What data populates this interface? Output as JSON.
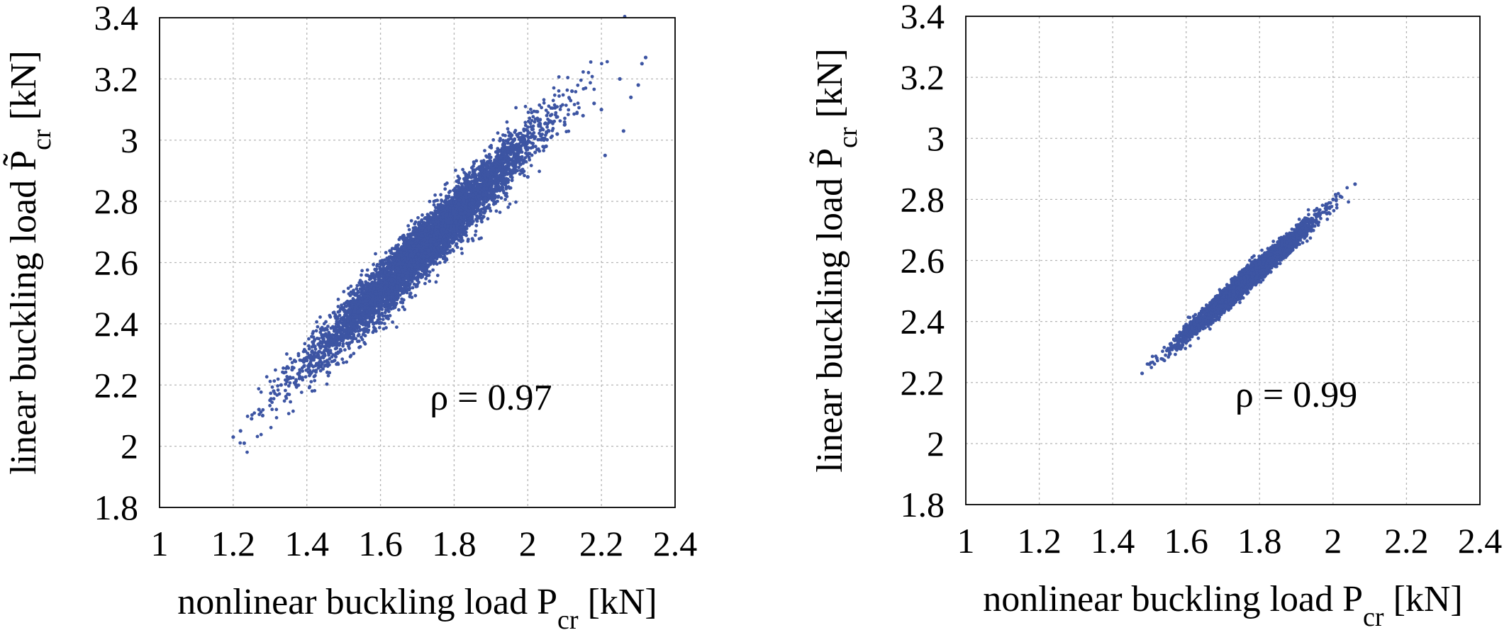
{
  "chart_data": [
    {
      "type": "scatter",
      "xlabel": "nonlinear buckling load P_cr [kN]",
      "ylabel": "linear buckling load P̃_cr [kN]",
      "xlim": [
        1,
        2.4
      ],
      "ylim": [
        1.8,
        3.4
      ],
      "xticks": [
        "1",
        "1.2",
        "1.4",
        "1.6",
        "1.8",
        "2",
        "2.2",
        "2.4"
      ],
      "yticks": [
        "1.8",
        "2",
        "2.2",
        "2.4",
        "2.6",
        "2.8",
        "3",
        "3.2",
        "3.4"
      ],
      "grid": true,
      "annotation": {
        "text": "ρ = 0.97",
        "x": 1.9,
        "y": 2.12
      },
      "marker_color": "#3d55a3",
      "series": [
        {
          "points": [
            [
              1.2,
              2.03
            ],
            [
              1.22,
              2.05
            ],
            [
              1.23,
              2.01
            ],
            [
              1.25,
              2.09
            ],
            [
              1.27,
              2.12
            ],
            [
              1.28,
              2.1
            ],
            [
              1.3,
              2.15
            ],
            [
              1.31,
              2.18
            ],
            [
              1.33,
              2.2
            ],
            [
              1.35,
              2.22
            ],
            [
              1.36,
              2.25
            ],
            [
              1.38,
              2.24
            ],
            [
              1.4,
              2.28
            ],
            [
              1.42,
              2.3
            ],
            [
              1.43,
              2.27
            ],
            [
              1.45,
              2.34
            ],
            [
              1.47,
              2.33
            ],
            [
              1.48,
              2.38
            ],
            [
              1.5,
              2.4
            ],
            [
              1.52,
              2.37
            ],
            [
              1.53,
              2.44
            ],
            [
              1.55,
              2.45
            ],
            [
              1.57,
              2.43
            ],
            [
              1.58,
              2.49
            ],
            [
              1.6,
              2.5
            ],
            [
              1.62,
              2.47
            ],
            [
              1.63,
              2.54
            ],
            [
              1.65,
              2.56
            ],
            [
              1.67,
              2.53
            ],
            [
              1.68,
              2.59
            ],
            [
              1.7,
              2.6
            ],
            [
              1.72,
              2.58
            ],
            [
              1.73,
              2.64
            ],
            [
              1.75,
              2.66
            ],
            [
              1.77,
              2.63
            ],
            [
              1.78,
              2.7
            ],
            [
              1.8,
              2.71
            ],
            [
              1.82,
              2.68
            ],
            [
              1.84,
              2.76
            ],
            [
              1.86,
              2.78
            ],
            [
              1.88,
              2.75
            ],
            [
              1.9,
              2.83
            ],
            [
              1.92,
              2.85
            ],
            [
              1.94,
              2.82
            ],
            [
              1.96,
              2.9
            ],
            [
              1.98,
              2.92
            ],
            [
              2.0,
              2.88
            ],
            [
              2.02,
              2.96
            ],
            [
              2.05,
              2.98
            ],
            [
              2.08,
              3.02
            ],
            [
              2.1,
              3.05
            ],
            [
              2.12,
              3.16
            ],
            [
              2.15,
              3.08
            ],
            [
              2.18,
              3.12
            ],
            [
              2.2,
              3.1
            ],
            [
              2.21,
              2.95
            ],
            [
              2.25,
              3.2
            ],
            [
              2.26,
              3.03
            ],
            [
              2.28,
              3.14
            ],
            [
              2.3,
              3.18
            ],
            [
              2.31,
              3.25
            ],
            [
              2.32,
              3.27
            ]
          ],
          "cloud": {
            "count": 6000,
            "x_mean": 1.72,
            "x_sd": 0.15,
            "x_min": 1.2,
            "x_max": 2.33,
            "slope": 1.2,
            "y_at_x_min": 2.03,
            "y_sd": 0.045
          }
        }
      ]
    },
    {
      "type": "scatter",
      "xlabel": "nonlinear buckling load P_cr [kN]",
      "ylabel": "linear buckling load P̃_cr [kN]",
      "xlim": [
        1,
        2.4
      ],
      "ylim": [
        1.8,
        3.4
      ],
      "xticks": [
        "1",
        "1.2",
        "1.4",
        "1.6",
        "1.8",
        "2",
        "2.2",
        "2.4"
      ],
      "yticks": [
        "1.8",
        "2",
        "2.2",
        "2.4",
        "2.6",
        "2.8",
        "3",
        "3.2",
        "3.4"
      ],
      "grid": true,
      "annotation": {
        "text": "ρ = 0.99",
        "x": 1.9,
        "y": 2.12
      },
      "marker_color": "#3d55a3",
      "series": [
        {
          "points": [
            [
              1.48,
              2.23
            ],
            [
              1.5,
              2.26
            ],
            [
              1.52,
              2.28
            ],
            [
              1.55,
              2.31
            ],
            [
              1.58,
              2.35
            ],
            [
              1.6,
              2.37
            ],
            [
              1.63,
              2.4
            ],
            [
              1.65,
              2.43
            ],
            [
              1.68,
              2.46
            ],
            [
              1.7,
              2.48
            ],
            [
              1.73,
              2.51
            ],
            [
              1.75,
              2.54
            ],
            [
              1.78,
              2.57
            ],
            [
              1.8,
              2.59
            ],
            [
              1.83,
              2.62
            ],
            [
              1.85,
              2.65
            ],
            [
              1.88,
              2.68
            ],
            [
              1.9,
              2.7
            ],
            [
              1.93,
              2.73
            ],
            [
              1.95,
              2.75
            ],
            [
              1.98,
              2.78
            ],
            [
              2.0,
              2.8
            ],
            [
              2.02,
              2.81
            ],
            [
              2.06,
              2.85
            ]
          ],
          "cloud": {
            "count": 6000,
            "x_mean": 1.76,
            "x_sd": 0.08,
            "x_min": 1.48,
            "x_max": 2.06,
            "slope": 1.07,
            "y_at_x_min": 2.23,
            "y_sd": 0.016
          }
        }
      ]
    }
  ]
}
